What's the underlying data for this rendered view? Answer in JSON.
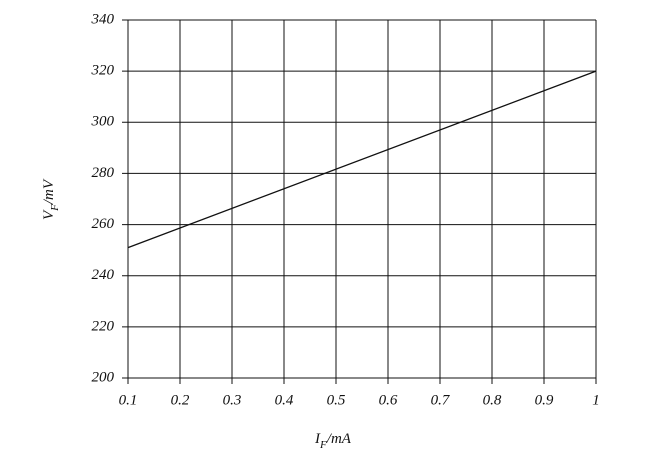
{
  "chart_data": {
    "type": "line",
    "x": [
      0.1,
      1
    ],
    "series": [
      {
        "name": "VF",
        "color": "#111111",
        "values": [
          251,
          320
        ]
      }
    ],
    "xlabel": {
      "symbol": "I",
      "subscript": "F",
      "unit": "/mA"
    },
    "ylabel": {
      "symbol": "V",
      "subscript": "F",
      "unit": "/mV"
    },
    "xlim": [
      0.1,
      1
    ],
    "xticks": [
      0.1,
      0.2,
      0.3,
      0.4,
      0.5,
      0.6,
      0.7,
      0.8,
      0.9,
      1
    ],
    "ylim": [
      200,
      340
    ],
    "yticks": [
      200,
      220,
      240,
      260,
      280,
      300,
      320,
      340
    ],
    "grid": true
  }
}
